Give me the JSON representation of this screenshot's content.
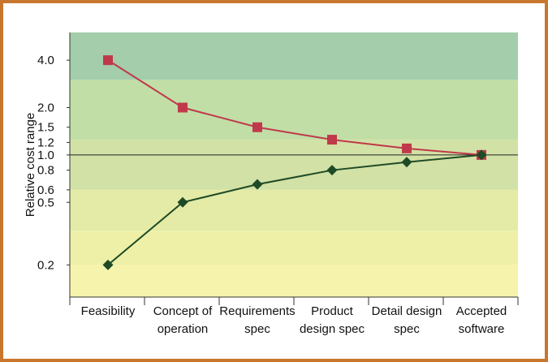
{
  "chart_data": {
    "type": "line",
    "y_scale": "log",
    "ylabel": "Relative cost range",
    "ylim": [
      0.125,
      6.0
    ],
    "y_ticks": [
      {
        "value": 4.0,
        "label": "4.0"
      },
      {
        "value": 2.0,
        "label": "2.0"
      },
      {
        "value": 1.5,
        "label": "1.5"
      },
      {
        "value": 1.2,
        "label": "1.2"
      },
      {
        "value": 1.0,
        "label": "1.0"
      },
      {
        "value": 0.8,
        "label": "0.8"
      },
      {
        "value": 0.6,
        "label": "0.6"
      },
      {
        "value": 0.5,
        "label": "0.5"
      },
      {
        "value": 0.2,
        "label": "0.2"
      }
    ],
    "categories": [
      [
        "Feasibility"
      ],
      [
        "Concept of",
        "operation"
      ],
      [
        "Requirements",
        "spec"
      ],
      [
        "Product",
        "design spec"
      ],
      [
        "Detail design",
        "spec"
      ],
      [
        "Accepted",
        "software"
      ]
    ],
    "series": [
      {
        "color": "#c0394a",
        "marker": "square",
        "values": [
          4.0,
          2.0,
          1.5,
          1.25,
          1.1,
          1.0
        ]
      },
      {
        "color": "#1f4a26",
        "marker": "diamond",
        "values": [
          0.2,
          0.5,
          0.65,
          0.8,
          0.9,
          1.0
        ]
      }
    ],
    "reference_line": 1.0,
    "bands": [
      {
        "from": 3.0,
        "to": 6.0,
        "color": "#a3cdab"
      },
      {
        "from": 1.25,
        "to": 3.0,
        "color": "#c1dea6"
      },
      {
        "from": 1.0,
        "to": 1.25,
        "color": "#d2e1a6"
      },
      {
        "from": 0.6,
        "to": 1.0,
        "color": "#d2e1a6"
      },
      {
        "from": 0.33,
        "to": 0.6,
        "color": "#e3eba6"
      },
      {
        "from": 0.2,
        "to": 0.33,
        "color": "#eef0a8"
      },
      {
        "from": 0.125,
        "to": 0.2,
        "color": "#f6f4ac"
      }
    ],
    "grid": false,
    "legend": "none"
  }
}
